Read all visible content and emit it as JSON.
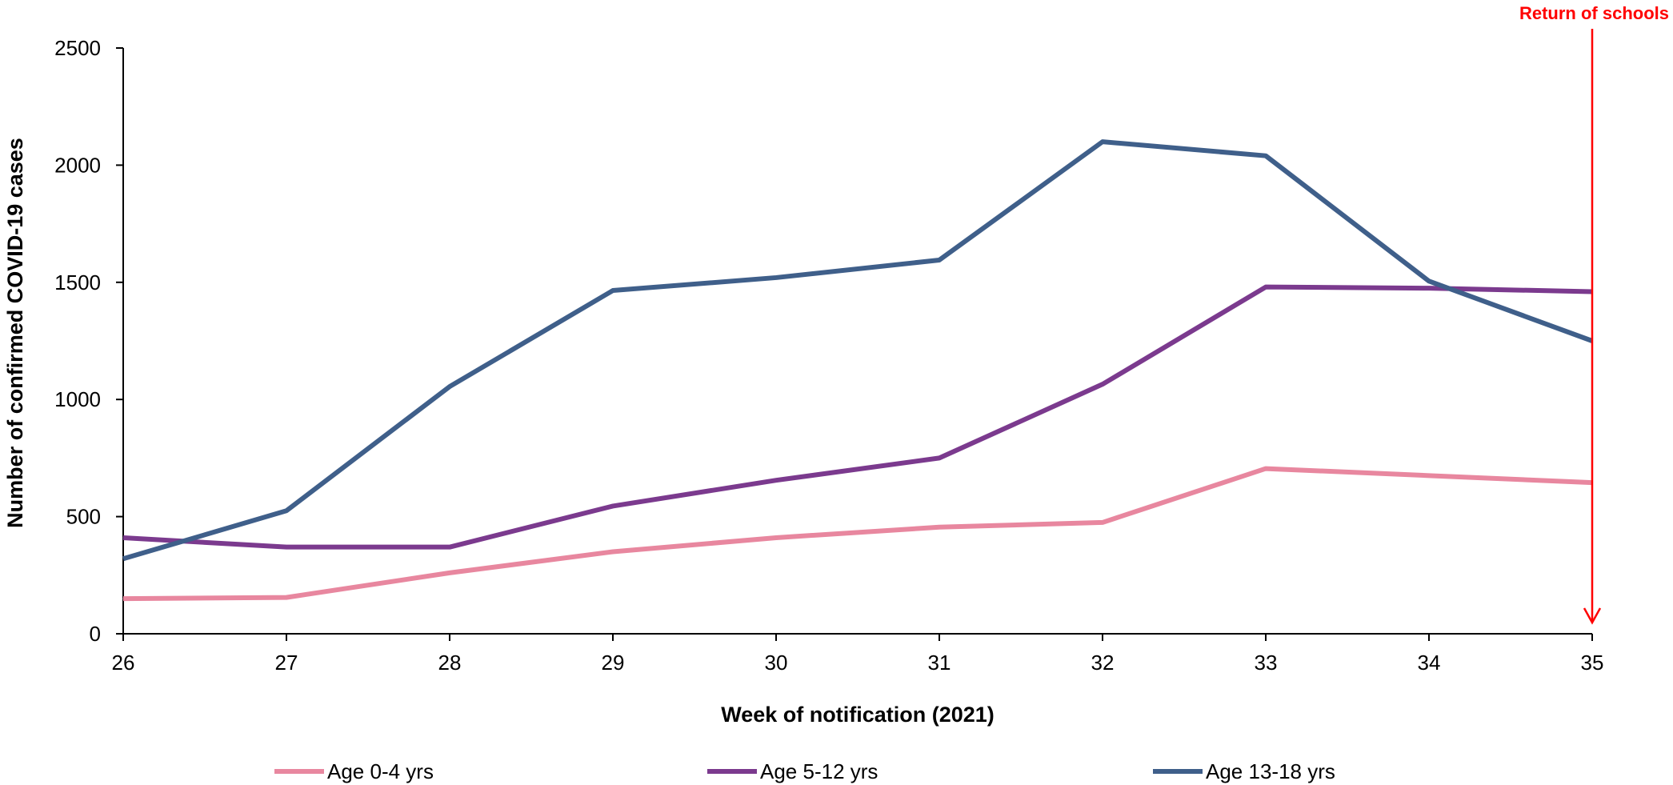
{
  "chart_data": {
    "type": "line",
    "xlabel": "Week of notification (2021)",
    "ylabel": "Number of confirmed COVID-19 cases",
    "x": [
      26,
      27,
      28,
      29,
      30,
      31,
      32,
      33,
      34,
      35
    ],
    "ylim": [
      0,
      2500
    ],
    "yticks": [
      0,
      500,
      1000,
      1500,
      2000,
      2500
    ],
    "grid": false,
    "legend_position": "bottom",
    "series": [
      {
        "name": "Age 0-4 yrs",
        "color": "#e8879f",
        "values": [
          150,
          155,
          260,
          350,
          410,
          455,
          475,
          705,
          675,
          645
        ]
      },
      {
        "name": "Age 5-12 yrs",
        "color": "#7b3a8e",
        "values": [
          410,
          370,
          370,
          545,
          655,
          750,
          1065,
          1480,
          1475,
          1460
        ]
      },
      {
        "name": "Age 13-18 yrs",
        "color": "#3f5f8a",
        "values": [
          320,
          525,
          1055,
          1465,
          1520,
          1595,
          2100,
          2040,
          1505,
          1250
        ]
      }
    ],
    "annotations": [
      {
        "text": "Return of schools",
        "x": 35,
        "color": "#ff0000"
      }
    ]
  }
}
